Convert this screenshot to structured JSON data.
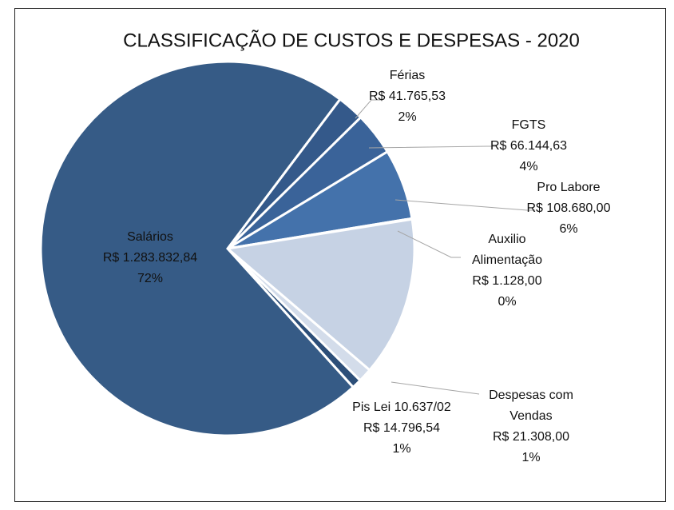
{
  "chart_data": {
    "type": "pie",
    "title": "CLASSIFICAÇÃO DE CUSTOS E DESPESAS - 2020",
    "categories": [
      "Férias",
      "FGTS",
      "Pro Labore",
      "Auxilio Alimentação",
      null,
      "Despesas com Vendas",
      "Pis Lei 10.637/02",
      "Salários"
    ],
    "values": [
      41765.53,
      66144.63,
      108680.0,
      1128.0,
      245446,
      21308.0,
      14796.54,
      1283832.84
    ],
    "value_labels": [
      "R$ 41.765,53",
      "R$ 66.144,63",
      "R$ 108.680,00",
      "R$ 1.128,00",
      null,
      "R$ 21.308,00",
      "R$ 14.796,54",
      "R$ 1.283.832,84"
    ],
    "percent_labels": [
      "2%",
      "4%",
      "6%",
      "0%",
      null,
      "1%",
      "1%",
      "72%"
    ],
    "colors": [
      "#34598a",
      "#3a6399",
      "#4472ab",
      "#8aa5cb",
      "#c6d2e4",
      "#d3dcea",
      "#2c4e78",
      "#365b86"
    ]
  }
}
